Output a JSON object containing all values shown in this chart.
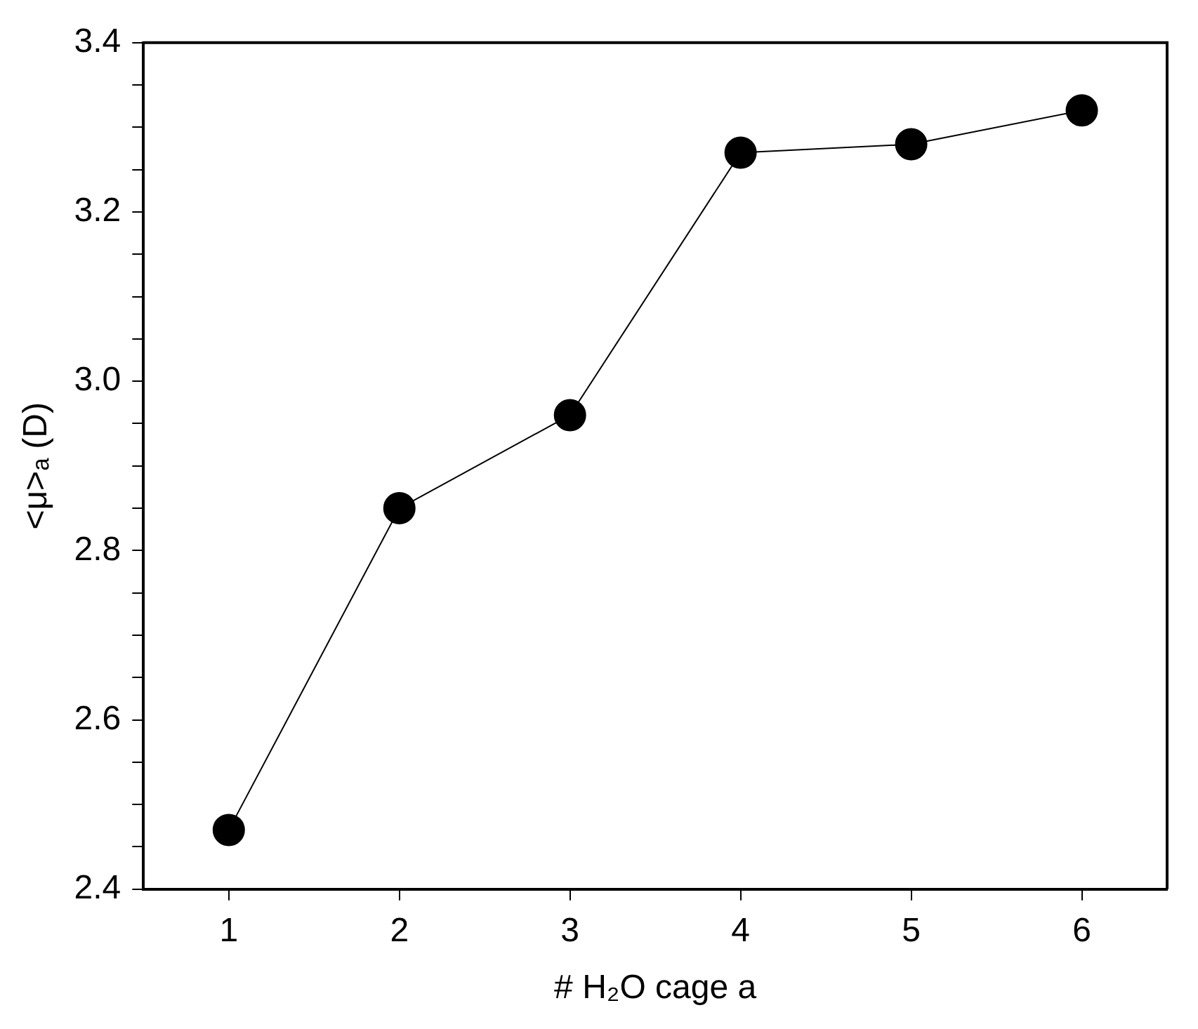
{
  "chart_data": {
    "type": "line",
    "xlabel": "# H₂O cage a",
    "ylabel": "<μ>ₐ (D)",
    "x": [
      1,
      2,
      3,
      4,
      5,
      6
    ],
    "series": [
      {
        "color": "#000000",
        "values": [
          2.47,
          2.85,
          2.96,
          3.27,
          3.28,
          3.32
        ]
      }
    ],
    "xlim": [
      0.5,
      6.5
    ],
    "xticks": [
      1,
      2,
      3,
      4,
      5,
      6
    ],
    "ylim": [
      2.4,
      3.4
    ],
    "yticks": [
      {
        "value": 2.4,
        "label": "2.4"
      },
      {
        "value": 2.45,
        "label": null
      },
      {
        "value": 2.5,
        "label": null
      },
      {
        "value": 2.55,
        "label": null
      },
      {
        "value": 2.6,
        "label": "2.6"
      },
      {
        "value": 2.65,
        "label": null
      },
      {
        "value": 2.7,
        "label": null
      },
      {
        "value": 2.75,
        "label": null
      },
      {
        "value": 2.8,
        "label": "2.8"
      },
      {
        "value": 2.85,
        "label": null
      },
      {
        "value": 2.9,
        "label": null
      },
      {
        "value": 2.95,
        "label": null
      },
      {
        "value": 3.0,
        "label": "3.0"
      },
      {
        "value": 3.05,
        "label": null
      },
      {
        "value": 3.1,
        "label": null
      },
      {
        "value": 3.15,
        "label": null
      },
      {
        "value": 3.2,
        "label": "3.2"
      },
      {
        "value": 3.25,
        "label": null
      },
      {
        "value": 3.3,
        "label": null
      },
      {
        "value": 3.35,
        "label": null
      },
      {
        "value": 3.4,
        "label": "3.4"
      }
    ],
    "marker": "circle",
    "line_style": "solid",
    "grid": false,
    "legend": false
  }
}
